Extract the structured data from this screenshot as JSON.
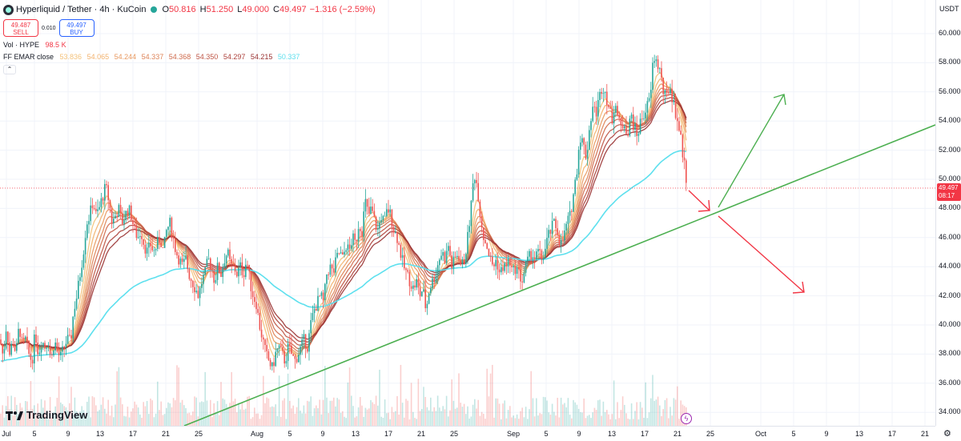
{
  "header": {
    "symbol": "Hyperliquid / Tether · 4h · KuCoin",
    "open_label": "O",
    "open": "50.816",
    "high_label": "H",
    "high": "51.250",
    "low_label": "L",
    "low": "49.000",
    "close_label": "C",
    "close": "49.497",
    "change": "−1.316 (−2.59%)"
  },
  "trade": {
    "sell_price": "49.487",
    "sell_label": "SELL",
    "spread": "0.010",
    "buy_price": "49.497",
    "buy_label": "BUY"
  },
  "indicators": {
    "volume_name": "Vol · HYPE",
    "volume_value": "98.5 K",
    "ema_name": "FF EMAR close",
    "ema_values": [
      "53.836",
      "54.065",
      "54.244",
      "54.337",
      "54.368",
      "54.350",
      "54.297",
      "54.215",
      "50.337"
    ],
    "ema_colors": [
      "#f4c27a",
      "#f2b26e",
      "#e89a62",
      "#de8458",
      "#d06d4f",
      "#bf5646",
      "#ad423c",
      "#993232",
      "#5ee0ee"
    ]
  },
  "price_axis": {
    "currency": "USDT",
    "ticks": [
      "60.000",
      "58.000",
      "56.000",
      "54.000",
      "52.000",
      "50.000",
      "48.000",
      "46.000",
      "44.000",
      "42.000",
      "40.000",
      "38.000",
      "36.000",
      "34.000"
    ],
    "last_price": "49.497",
    "countdown": "08:17"
  },
  "time_axis": {
    "ticks": [
      "Jul",
      "5",
      "9",
      "13",
      "17",
      "21",
      "25",
      "Aug",
      "5",
      "9",
      "13",
      "17",
      "21",
      "25",
      "Sep",
      "5",
      "9",
      "13",
      "17",
      "21",
      "25",
      "Oct",
      "5",
      "9",
      "13",
      "17",
      "21"
    ]
  },
  "branding": {
    "logo_text": "TradingView"
  },
  "colors": {
    "up": "#26a69a",
    "down": "#ef5350",
    "trendline": "#4caf50",
    "arrow_up": "#4caf50",
    "arrow_down": "#f23645",
    "ema_slow": "#5ee0ee"
  },
  "chart_data": {
    "type": "candlestick",
    "ylim": [
      33.0,
      61.5
    ],
    "close_path": [
      [
        0,
        39.0
      ],
      [
        4,
        37.8
      ],
      [
        8,
        40.0
      ],
      [
        12,
        38.0
      ],
      [
        16,
        39.0
      ],
      [
        20,
        38.0
      ],
      [
        24,
        40.0
      ],
      [
        28,
        38.5
      ],
      [
        32,
        39.0
      ],
      [
        36,
        38.0
      ],
      [
        40,
        37.5
      ],
      [
        44,
        39.5
      ],
      [
        48,
        38.0
      ],
      [
        52,
        39.0
      ],
      [
        56,
        38.5
      ],
      [
        60,
        39.0
      ],
      [
        64,
        37.5
      ],
      [
        68,
        39.0
      ],
      [
        72,
        38.0
      ],
      [
        76,
        37.8
      ],
      [
        80,
        38.5
      ],
      [
        84,
        39.0
      ],
      [
        88,
        38.8
      ],
      [
        92,
        41.0
      ],
      [
        96,
        42.0
      ],
      [
        100,
        43.5
      ],
      [
        104,
        45.0
      ],
      [
        108,
        47.0
      ],
      [
        112,
        47.5
      ],
      [
        116,
        48.5
      ],
      [
        120,
        47.5
      ],
      [
        124,
        48.0
      ],
      [
        128,
        48.8
      ],
      [
        132,
        49.5
      ],
      [
        136,
        48.5
      ],
      [
        140,
        47.0
      ],
      [
        144,
        47.5
      ],
      [
        148,
        48.0
      ],
      [
        152,
        47.0
      ],
      [
        156,
        47.5
      ],
      [
        160,
        48.0
      ],
      [
        164,
        47.5
      ],
      [
        168,
        46.5
      ],
      [
        172,
        46.0
      ],
      [
        176,
        46.5
      ],
      [
        180,
        45.5
      ],
      [
        184,
        45.0
      ],
      [
        188,
        45.5
      ],
      [
        192,
        45.0
      ],
      [
        196,
        45.5
      ],
      [
        200,
        46.0
      ],
      [
        204,
        45.0
      ],
      [
        208,
        46.5
      ],
      [
        212,
        47.0
      ],
      [
        216,
        46.0
      ],
      [
        220,
        45.0
      ],
      [
        224,
        44.5
      ],
      [
        228,
        44.0
      ],
      [
        232,
        44.5
      ],
      [
        236,
        43.5
      ],
      [
        240,
        43.0
      ],
      [
        244,
        42.5
      ],
      [
        248,
        42.0
      ],
      [
        252,
        43.0
      ],
      [
        256,
        43.5
      ],
      [
        260,
        44.5
      ],
      [
        264,
        44.0
      ],
      [
        268,
        43.0
      ],
      [
        272,
        44.0
      ],
      [
        276,
        43.5
      ],
      [
        280,
        44.5
      ],
      [
        284,
        45.0
      ],
      [
        288,
        44.0
      ],
      [
        292,
        44.0
      ],
      [
        296,
        43.5
      ],
      [
        300,
        44.0
      ],
      [
        304,
        43.5
      ],
      [
        308,
        44.5
      ],
      [
        312,
        43.0
      ],
      [
        316,
        42.0
      ],
      [
        320,
        41.5
      ],
      [
        324,
        40.0
      ],
      [
        328,
        39.0
      ],
      [
        332,
        38.0
      ],
      [
        336,
        37.5
      ],
      [
        340,
        37.0
      ],
      [
        344,
        38.0
      ],
      [
        348,
        38.5
      ],
      [
        352,
        38.0
      ],
      [
        356,
        37.5
      ],
      [
        360,
        38.5
      ],
      [
        364,
        38.0
      ],
      [
        368,
        37.5
      ],
      [
        372,
        38.0
      ],
      [
        376,
        38.5
      ],
      [
        380,
        39.0
      ],
      [
        384,
        38.5
      ],
      [
        388,
        40.0
      ],
      [
        392,
        41.0
      ],
      [
        396,
        41.5
      ],
      [
        400,
        42.0
      ],
      [
        404,
        41.5
      ],
      [
        408,
        43.5
      ],
      [
        412,
        44.0
      ],
      [
        416,
        43.5
      ],
      [
        420,
        44.5
      ],
      [
        424,
        45.0
      ],
      [
        428,
        44.5
      ],
      [
        432,
        45.5
      ],
      [
        436,
        45.0
      ],
      [
        440,
        46.0
      ],
      [
        444,
        45.5
      ],
      [
        448,
        47.0
      ],
      [
        452,
        46.5
      ],
      [
        456,
        48.5
      ],
      [
        460,
        47.5
      ],
      [
        464,
        48.0
      ],
      [
        468,
        47.0
      ],
      [
        472,
        46.5
      ],
      [
        476,
        47.5
      ],
      [
        480,
        47.0
      ],
      [
        484,
        48.0
      ],
      [
        488,
        47.5
      ],
      [
        492,
        46.5
      ],
      [
        496,
        46.0
      ],
      [
        500,
        45.0
      ],
      [
        504,
        44.0
      ],
      [
        508,
        43.5
      ],
      [
        512,
        43.0
      ],
      [
        516,
        42.5
      ],
      [
        520,
        43.0
      ],
      [
        524,
        42.0
      ],
      [
        528,
        42.5
      ],
      [
        532,
        41.0
      ],
      [
        536,
        42.5
      ],
      [
        540,
        43.0
      ],
      [
        544,
        43.5
      ],
      [
        548,
        44.5
      ],
      [
        552,
        45.0
      ],
      [
        556,
        44.5
      ],
      [
        560,
        45.5
      ],
      [
        564,
        44.0
      ],
      [
        568,
        44.5
      ],
      [
        572,
        45.0
      ],
      [
        576,
        44.0
      ],
      [
        580,
        44.5
      ],
      [
        584,
        46.0
      ],
      [
        588,
        48.0
      ],
      [
        592,
        50.5
      ],
      [
        596,
        49.5
      ],
      [
        600,
        47.5
      ],
      [
        604,
        46.0
      ],
      [
        608,
        45.5
      ],
      [
        612,
        44.5
      ],
      [
        616,
        44.0
      ],
      [
        620,
        44.5
      ],
      [
        624,
        43.5
      ],
      [
        628,
        44.0
      ],
      [
        632,
        44.0
      ],
      [
        636,
        44.5
      ],
      [
        640,
        43.5
      ],
      [
        644,
        44.0
      ],
      [
        648,
        43.5
      ],
      [
        652,
        43.0
      ],
      [
        656,
        44.0
      ],
      [
        660,
        44.5
      ],
      [
        664,
        45.0
      ],
      [
        668,
        44.5
      ],
      [
        672,
        45.0
      ],
      [
        676,
        44.5
      ],
      [
        680,
        45.0
      ],
      [
        684,
        46.0
      ],
      [
        688,
        46.5
      ],
      [
        692,
        47.0
      ],
      [
        696,
        46.5
      ],
      [
        700,
        45.5
      ],
      [
        704,
        46.0
      ],
      [
        708,
        47.0
      ],
      [
        712,
        47.5
      ],
      [
        716,
        49.0
      ],
      [
        720,
        50.5
      ],
      [
        724,
        53.0
      ],
      [
        728,
        52.5
      ],
      [
        732,
        51.5
      ],
      [
        736,
        53.5
      ],
      [
        740,
        55.0
      ],
      [
        744,
        54.5
      ],
      [
        748,
        55.5
      ],
      [
        752,
        56.5
      ],
      [
        756,
        56.0
      ],
      [
        760,
        55.0
      ],
      [
        764,
        54.0
      ],
      [
        768,
        55.5
      ],
      [
        772,
        54.0
      ],
      [
        776,
        53.5
      ],
      [
        780,
        54.0
      ],
      [
        784,
        53.0
      ],
      [
        788,
        54.5
      ],
      [
        792,
        53.5
      ],
      [
        796,
        53.0
      ],
      [
        800,
        54.0
      ],
      [
        804,
        54.5
      ],
      [
        808,
        55.0
      ],
      [
        812,
        55.5
      ],
      [
        816,
        58.5
      ],
      [
        820,
        58.0
      ],
      [
        824,
        57.5
      ],
      [
        828,
        56.0
      ],
      [
        832,
        55.5
      ],
      [
        836,
        56.5
      ],
      [
        840,
        55.5
      ],
      [
        844,
        54.5
      ],
      [
        848,
        53.5
      ],
      [
        852,
        52.0
      ],
      [
        856,
        50.5
      ],
      [
        858,
        49.5
      ]
    ]
  }
}
